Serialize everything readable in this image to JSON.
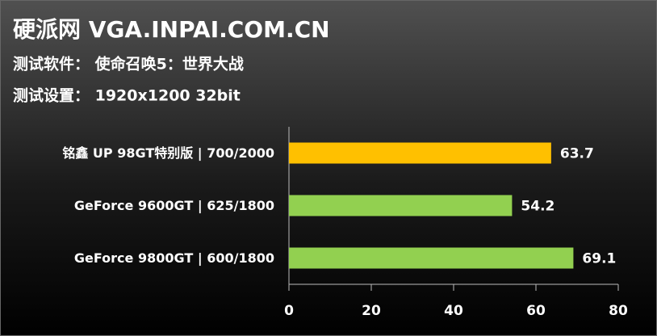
{
  "chart_data": {
    "type": "bar",
    "orientation": "horizontal",
    "title": "硬派网 VGA.INPAI.COM.CN",
    "subtitles": [
      "测试软件： 使命召唤5：世界大战",
      "测试设置： 1920x1200 32bit"
    ],
    "categories": [
      "铭鑫 UP 98GT特别版 | 700/2000",
      "GeForce 9600GT | 625/1800",
      "GeForce 9800GT | 600/1800"
    ],
    "values": [
      63.7,
      54.2,
      69.1
    ],
    "colors": [
      "#ffc000",
      "#92d050",
      "#92d050"
    ],
    "xlim": [
      0,
      80
    ],
    "xticks": [
      0,
      20,
      40,
      60,
      80
    ]
  }
}
